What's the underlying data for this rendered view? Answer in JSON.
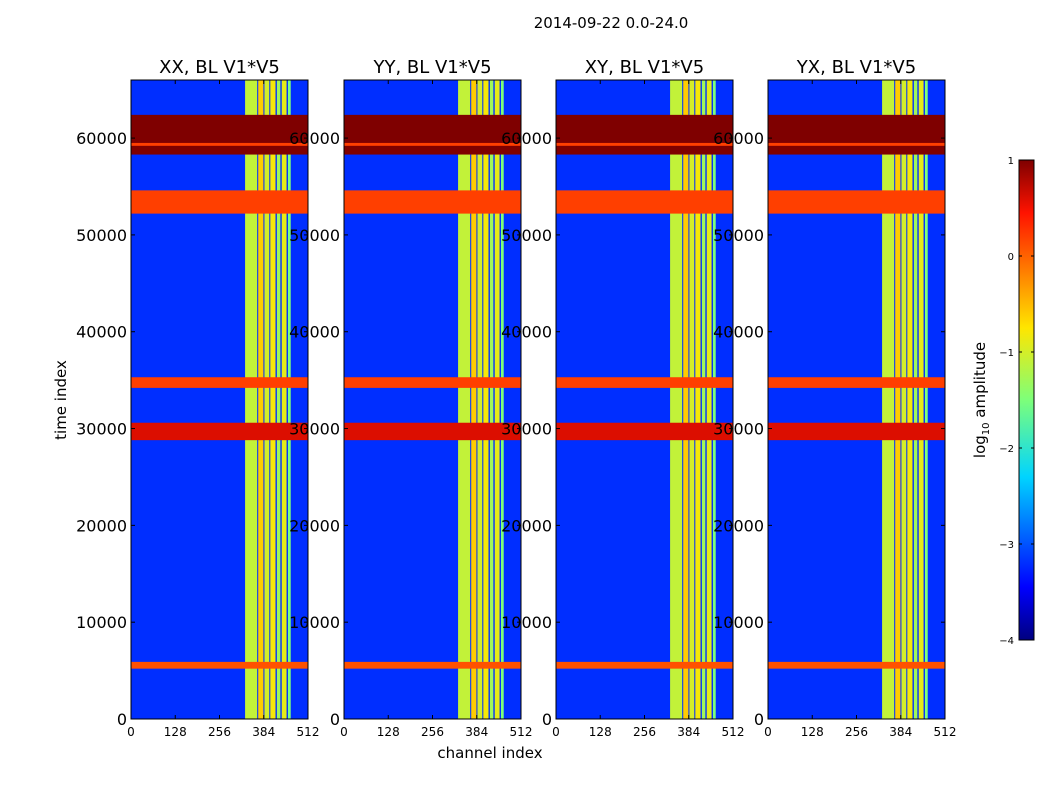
{
  "chart_data": {
    "type": "heatmap",
    "title": "2014-09-22 0.0-24.0",
    "xlabel": "channel index",
    "ylabel": "time index",
    "xlim": [
      0,
      512
    ],
    "ylim": [
      0,
      66000
    ],
    "x_ticks": [
      0,
      128,
      256,
      384,
      512
    ],
    "y_ticks": [
      0,
      10000,
      20000,
      30000,
      40000,
      50000,
      60000
    ],
    "panels": [
      {
        "title": "XX, BL V1*V5"
      },
      {
        "title": "YY, BL V1*V5"
      },
      {
        "title": "XY, BL V1*V5"
      },
      {
        "title": "YX, BL V1*V5"
      }
    ],
    "background_log10": -3.2,
    "rfi_channel_columns": [
      {
        "range": [
          330,
          365
        ],
        "level": -1.1
      },
      {
        "range": [
          368,
          383
        ],
        "level": -0.6
      },
      {
        "range": [
          386,
          400
        ],
        "level": -1.0
      },
      {
        "range": [
          403,
          418
        ],
        "level": -0.8
      },
      {
        "range": [
          422,
          432
        ],
        "level": -1.3
      },
      {
        "range": [
          436,
          450
        ],
        "level": -0.9
      },
      {
        "range": [
          454,
          462
        ],
        "level": -1.5
      }
    ],
    "flagged_time_bands": [
      {
        "range": [
          58300,
          62400
        ],
        "level": 1.0
      },
      {
        "range": [
          52200,
          54600
        ],
        "level": 0.2
      },
      {
        "range": [
          28800,
          30600
        ],
        "level": 0.6
      },
      {
        "range": [
          34200,
          35300
        ],
        "level": 0.2
      },
      {
        "range": [
          5200,
          5900
        ],
        "level": 0.1
      },
      {
        "range": [
          59200,
          59500
        ],
        "level": 0.2
      }
    ],
    "colorbar": {
      "label": "log10 amplitude",
      "min": -4,
      "max": 1,
      "ticks": [
        -4,
        -3,
        -2,
        -1,
        0,
        1
      ],
      "tick_labels": [
        "−4",
        "−3",
        "−2",
        "−1",
        "0",
        "1"
      ],
      "colormap": "jet"
    }
  }
}
